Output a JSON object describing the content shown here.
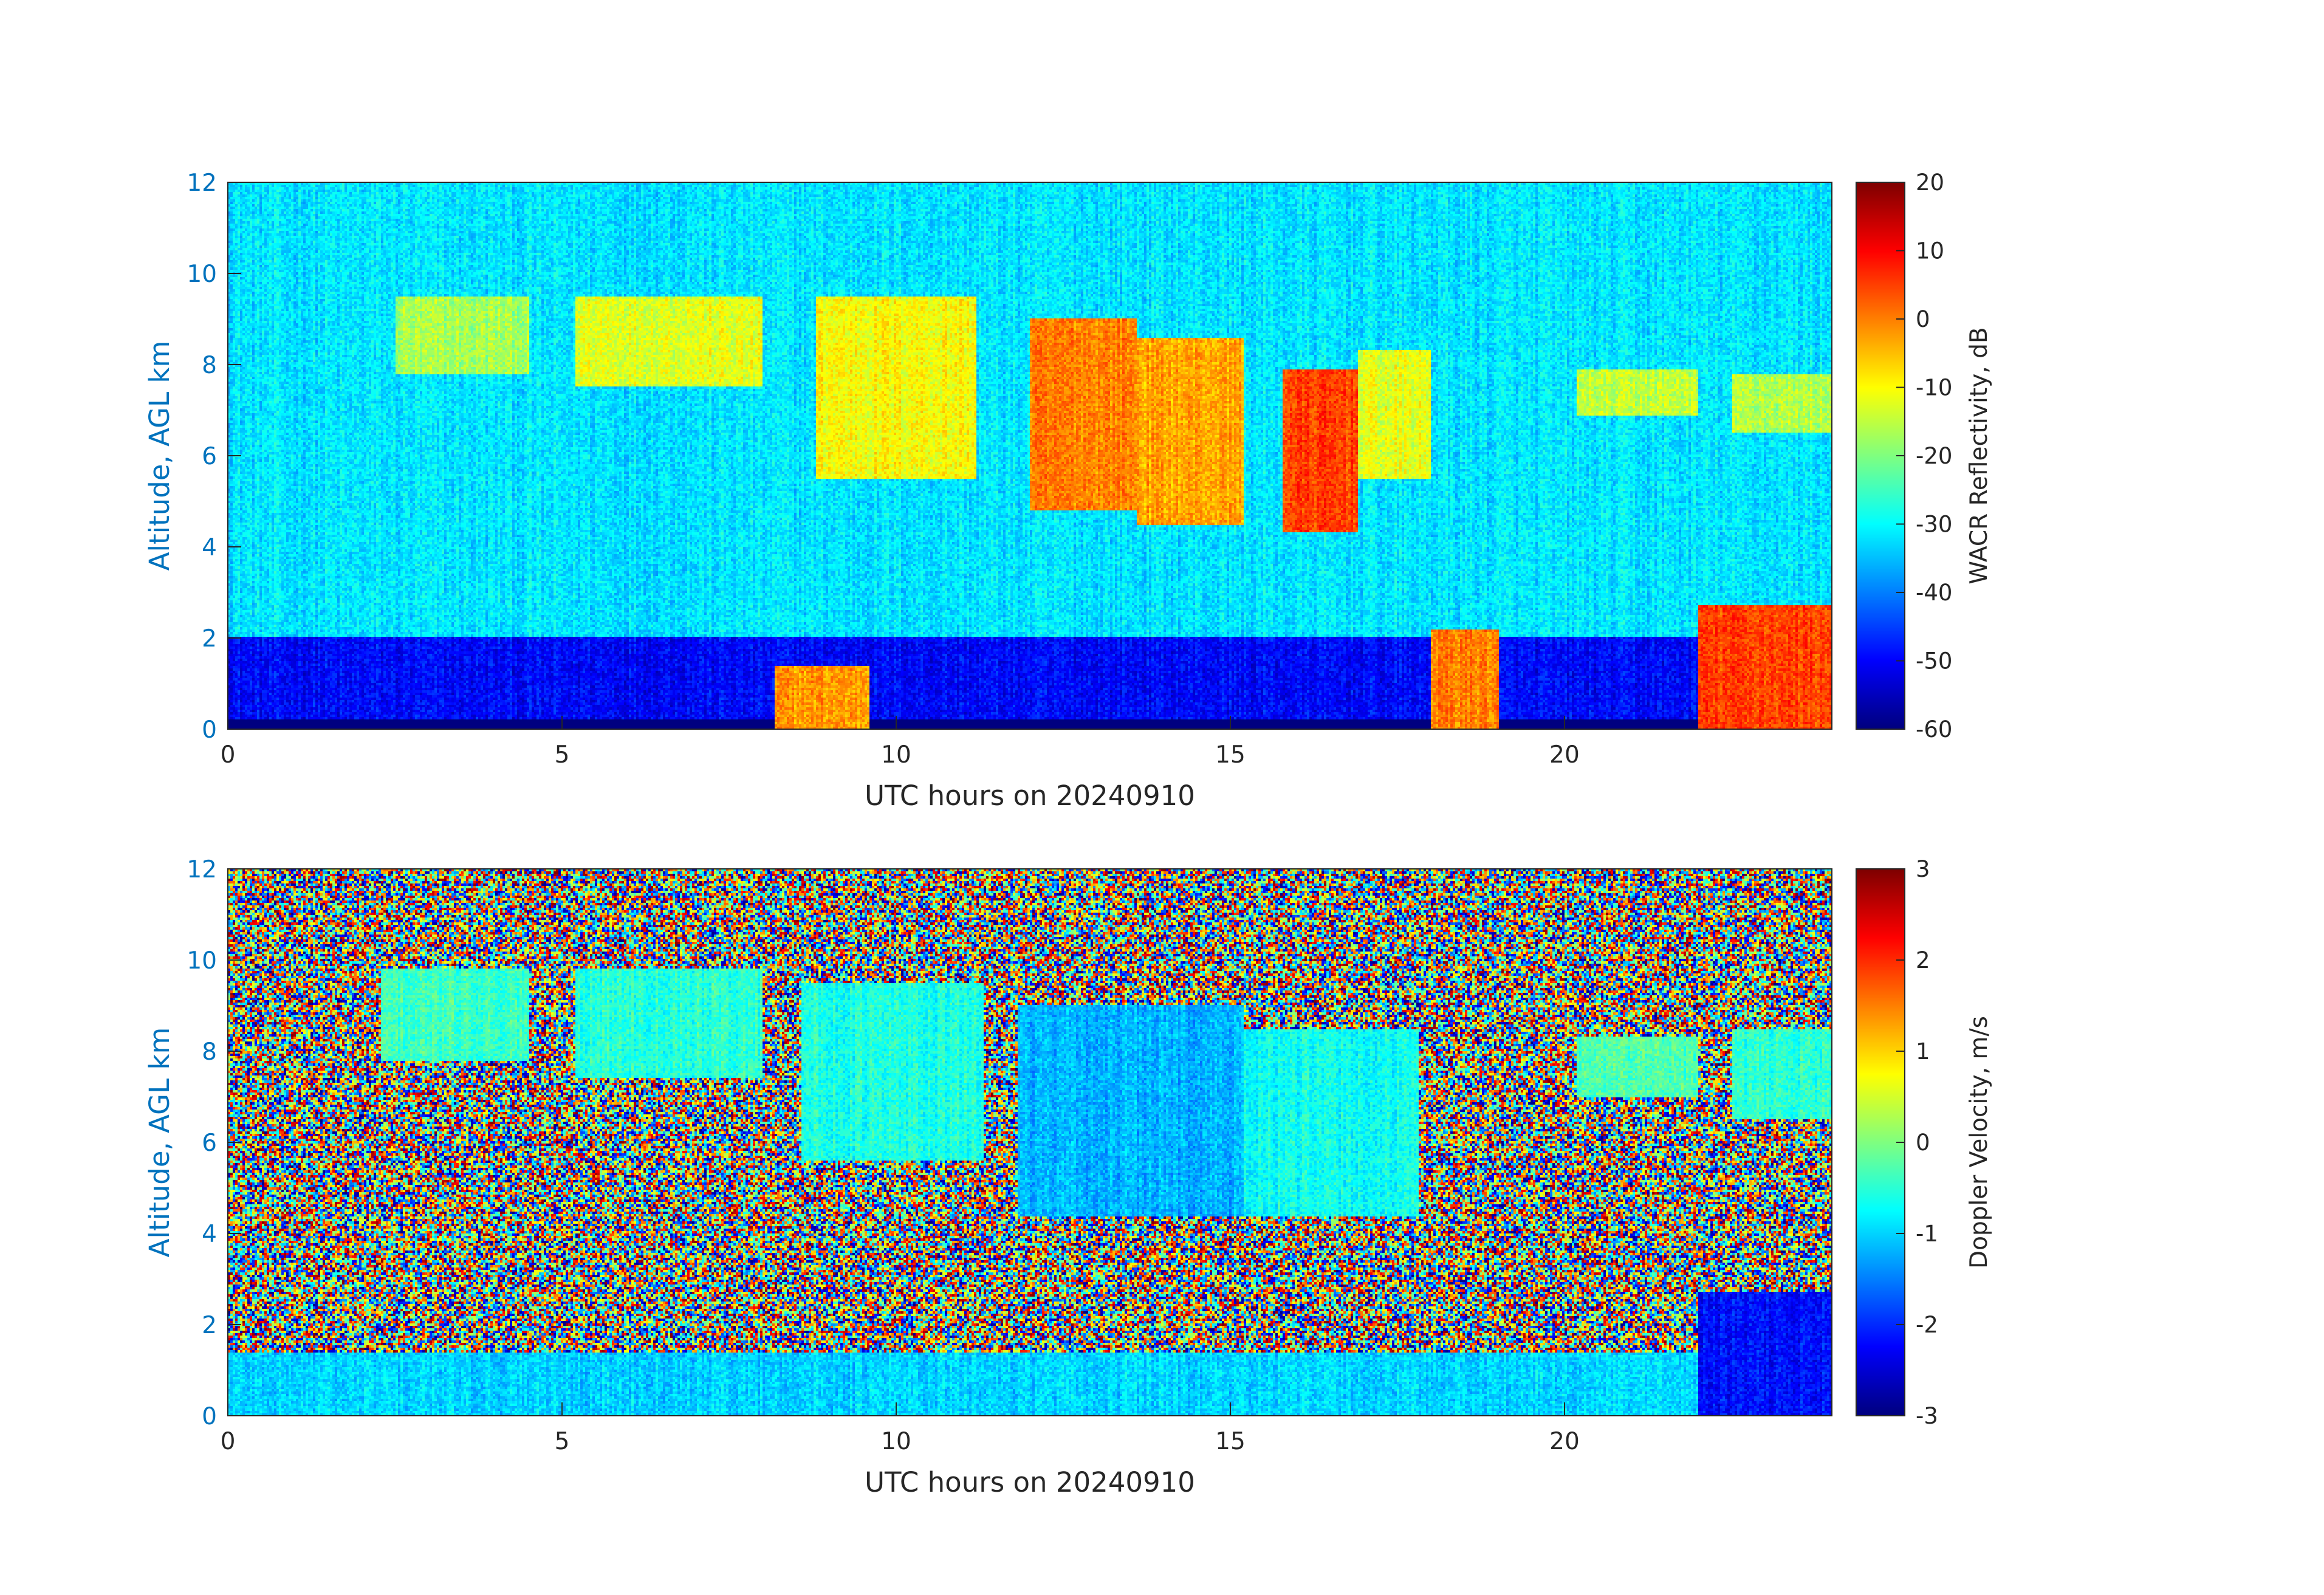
{
  "chart_data": [
    {
      "type": "heatmap",
      "xlabel": "UTC hours on 20240910",
      "ylabel": "Altitude, AGL km",
      "xlim": [
        0,
        24
      ],
      "ylim": [
        0,
        12
      ],
      "xticks": [
        0,
        5,
        10,
        15,
        20
      ],
      "yticks": [
        0,
        2,
        4,
        6,
        8,
        10,
        12
      ],
      "colorbar": {
        "label": "WACR Reflectivity, dB",
        "range": [
          -60,
          20
        ],
        "ticks": [
          20,
          10,
          0,
          -10,
          -20,
          -30,
          -40,
          -50,
          -60
        ],
        "colormap": "jet"
      },
      "field_description": [
        {
          "x_range": [
            0,
            24
          ],
          "y_range": [
            0.2,
            12
          ],
          "value": -32
        },
        {
          "x_range": [
            0,
            24
          ],
          "y_range": [
            0.2,
            2
          ],
          "value": -50
        },
        {
          "x_range": [
            2.5,
            4.5
          ],
          "y_range": [
            7.8,
            9.5
          ],
          "value": -17
        },
        {
          "x_range": [
            5.2,
            8
          ],
          "y_range": [
            7.5,
            9.5
          ],
          "value": -12
        },
        {
          "x_range": [
            8.8,
            11.2
          ],
          "y_range": [
            5.5,
            9.5
          ],
          "value": -10
        },
        {
          "x_range": [
            12,
            13.6
          ],
          "y_range": [
            4.8,
            9
          ],
          "value": 0
        },
        {
          "x_range": [
            13.6,
            15.2
          ],
          "y_range": [
            4.5,
            8.6
          ],
          "value": -3
        },
        {
          "x_range": [
            15.8,
            16.9
          ],
          "y_range": [
            4.3,
            7.9
          ],
          "value": 5
        },
        {
          "x_range": [
            16.9,
            18
          ],
          "y_range": [
            5.5,
            8.3
          ],
          "value": -12
        },
        {
          "x_range": [
            20.2,
            22
          ],
          "y_range": [
            6.9,
            7.9
          ],
          "value": -15
        },
        {
          "x_range": [
            22.5,
            24
          ],
          "y_range": [
            6.5,
            7.8
          ],
          "value": -16
        },
        {
          "x_range": [
            8.2,
            9.6
          ],
          "y_range": [
            0,
            1.4
          ],
          "value": -2
        },
        {
          "x_range": [
            18,
            19
          ],
          "y_range": [
            0,
            2.2
          ],
          "value": 0
        },
        {
          "x_range": [
            22,
            24
          ],
          "y_range": [
            0,
            2.7
          ],
          "value": 5
        }
      ]
    },
    {
      "type": "heatmap",
      "xlabel": "UTC hours on 20240910",
      "ylabel": "Altitude, AGL km",
      "xlim": [
        0,
        24
      ],
      "ylim": [
        0,
        12
      ],
      "xticks": [
        0,
        5,
        10,
        15,
        20
      ],
      "yticks": [
        0,
        2,
        4,
        6,
        8,
        10,
        12
      ],
      "colorbar": {
        "label": "Doppler Velocity, m/s",
        "range": [
          -3,
          3
        ],
        "ticks": [
          3,
          2,
          1,
          0,
          -1,
          -2,
          -3
        ],
        "colormap": "jet"
      },
      "field_description": [
        {
          "x_range": [
            0,
            24
          ],
          "y_range": [
            0,
            12
          ],
          "value": "noise"
        },
        {
          "x_range": [
            2.3,
            4.5
          ],
          "y_range": [
            7.8,
            9.8
          ],
          "value": -0.4
        },
        {
          "x_range": [
            5.2,
            8
          ],
          "y_range": [
            7.4,
            9.8
          ],
          "value": -0.5
        },
        {
          "x_range": [
            8.6,
            11.3
          ],
          "y_range": [
            5.6,
            9.5
          ],
          "value": -0.6
        },
        {
          "x_range": [
            11.8,
            15.2
          ],
          "y_range": [
            4.4,
            9
          ],
          "value": -1.2
        },
        {
          "x_range": [
            15.2,
            17.8
          ],
          "y_range": [
            4.4,
            8.5
          ],
          "value": -0.7
        },
        {
          "x_range": [
            20.2,
            22
          ],
          "y_range": [
            7,
            8.3
          ],
          "value": -0.3
        },
        {
          "x_range": [
            22.5,
            24
          ],
          "y_range": [
            6.5,
            8.5
          ],
          "value": -0.5
        },
        {
          "x_range": [
            0,
            22
          ],
          "y_range": [
            0,
            1.4
          ],
          "value": -1
        },
        {
          "x_range": [
            22,
            24
          ],
          "y_range": [
            0,
            2.7
          ],
          "value": -2.2
        }
      ]
    }
  ]
}
